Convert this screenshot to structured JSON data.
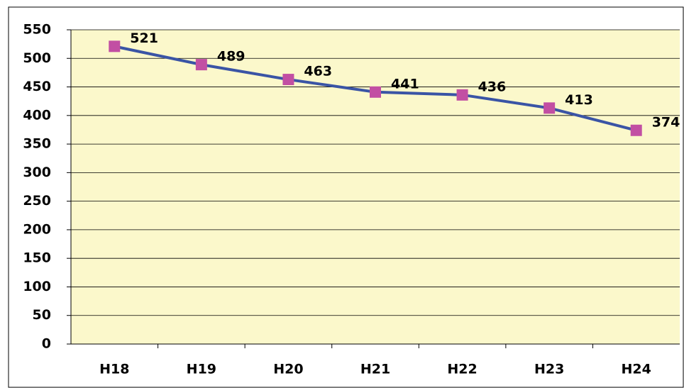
{
  "chart_data": {
    "type": "line",
    "categories": [
      "H18",
      "H19",
      "H20",
      "H21",
      "H22",
      "H23",
      "H24"
    ],
    "series": [
      {
        "name": null,
        "color": "#3a54a5",
        "marker_color": "#c24fa3",
        "values": [
          521,
          489,
          463,
          441,
          436,
          413,
          374
        ]
      }
    ],
    "ylim": [
      0,
      550
    ],
    "yticks": [
      0,
      50,
      100,
      150,
      200,
      250,
      300,
      350,
      400,
      450,
      500,
      550
    ],
    "grid": true
  }
}
